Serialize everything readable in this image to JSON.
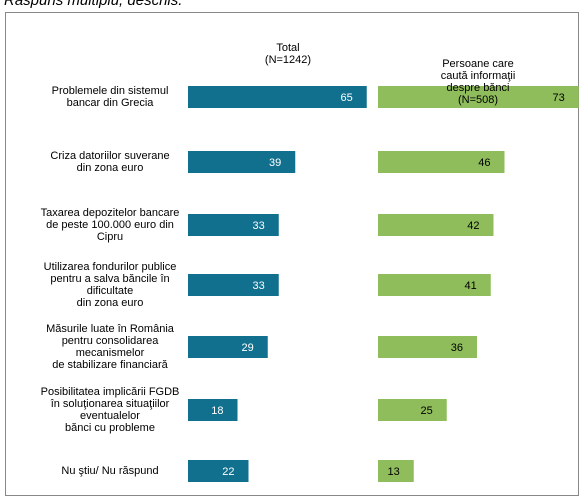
{
  "chart_data": {
    "type": "bar",
    "orientation": "horizontal",
    "subtitle": "Răspuns multiplu, deschis.",
    "categories": [
      "Problemele din sistemul\nbancar din Grecia",
      "Criza datoriilor suverane\ndin zona euro",
      "Taxarea depozitelor bancare\nde peste 100.000 euro din\nCipru",
      "Utilizarea fondurilor publice\npentru a salva băncile în\ndificultate\ndin zona euro",
      "Măsurile luate în România\npentru consolidarea\nmecanismelor\nde stabilizare financiară",
      "Posibilitatea implicării FGDB\nîn soluţionarea situaţiilor\neventualelor\nbănci cu probleme",
      "Nu ştiu/ Nu răspund"
    ],
    "series": [
      {
        "name": "Total\n(N=1242)",
        "color": "#12708f",
        "label_color": "#ffffff",
        "values": [
          65,
          39,
          33,
          33,
          29,
          18,
          22
        ]
      },
      {
        "name": "Persoane care\ncaută informaţii\ndespre bănci\n(N=508)",
        "color": "#8fbd5b",
        "label_color": "#000000",
        "values": [
          73,
          46,
          42,
          41,
          36,
          25,
          13
        ]
      }
    ]
  }
}
